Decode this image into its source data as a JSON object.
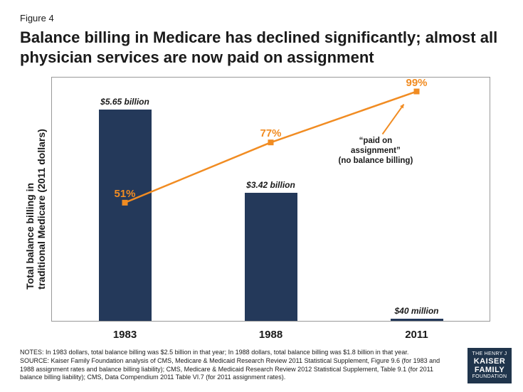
{
  "figure_label": "Figure 4",
  "title": "Balance billing in Medicare has declined significantly; almost all physician services are now paid on assignment",
  "y_axis_label": "Total balance billing in\ntraditional Medicare (2011 dollars)",
  "chart": {
    "type": "bar+line",
    "categories": [
      "1983",
      "1988",
      "2011"
    ],
    "bars": {
      "values_billion": [
        5.65,
        3.42,
        0.04
      ],
      "labels": [
        "$5.65 billion",
        "$3.42 billion",
        "$40 million"
      ],
      "color": "#24395a",
      "y_max": 6.5
    },
    "line": {
      "pct_values": [
        51,
        77,
        99
      ],
      "labels": [
        "51%",
        "77%",
        "99%"
      ],
      "color": "#f18c22",
      "y_max": 105,
      "marker_size": 8,
      "line_width": 2.5
    },
    "annotation": {
      "lines": [
        "“paid on",
        "assignment”",
        "(no balance billing)"
      ],
      "arrow_color": "#f18c22"
    },
    "plot_border_color": "#999999",
    "background_color": "#ffffff"
  },
  "notes": "NOTES: In 1983 dollars, total balance billing was $2.5 billion in that year; In 1988 dollars, total balance billing was $1.8 billion in that year.",
  "source": "SOURCE: Kaiser Family Foundation analysis of CMS, Medicare & Medicaid Research Review 2011 Statistical Supplement, Figure 9.6 (for 1983 and 1988 assignment rates and balance billing liability); CMS, Medicare & Medicaid Research Review 2012 Statistical Supplement, Table 9.1 (for 2011 balance billing liability); CMS, Data Compendium 2011 Table VI.7 (for 2011 assignment rates).",
  "logo": {
    "line1": "THE HENRY J",
    "line2": "KAISER",
    "line3": "FAMILY",
    "line4": "FOUNDATION",
    "bg": "#20354c"
  }
}
